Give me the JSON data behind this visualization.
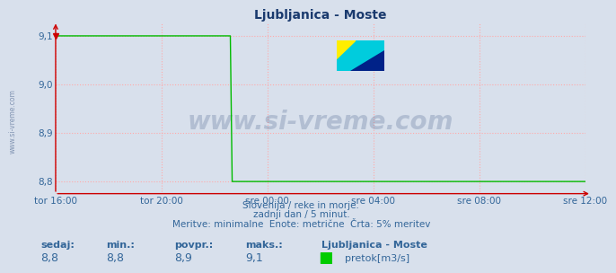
{
  "title": "Ljubljanica - Moste",
  "bg_color": "#d8e0ec",
  "plot_bg_color": "#d8e0ec",
  "line_color": "#00bb00",
  "grid_color": "#ffaaaa",
  "axis_color": "#cc0000",
  "text_color": "#336699",
  "title_color": "#1a3a6e",
  "ylim": [
    8.775,
    9.125
  ],
  "yticks": [
    8.8,
    8.9,
    9.0,
    9.1
  ],
  "ylabel_vals": [
    "8,8",
    "8,9",
    "9,0",
    "9,1"
  ],
  "xtick_labels": [
    "tor 16:00",
    "tor 20:00",
    "sre 00:00",
    "sre 04:00",
    "sre 08:00",
    "sre 12:00"
  ],
  "n_points": 289,
  "step_point": 96,
  "high_value": 9.1,
  "low_value": 8.8,
  "watermark": "www.si-vreme.com",
  "watermark_color": "#1a3a6e",
  "side_text": "www.si-vreme.com",
  "caption_line1": "Slovenija / reke in morje.",
  "caption_line2": "zadnji dan / 5 minut.",
  "caption_line3": "Meritve: minimalne  Enote: metrične  Črta: 5% meritev",
  "stat_label_color": "#336699",
  "stat_value_color": "#336699",
  "legend_title": "Ljubljanica - Moste",
  "legend_label": "pretok[m3/s]",
  "legend_color": "#00cc00",
  "sedaj": "8,8",
  "min_val": "8,8",
  "povpr_val": "8,9",
  "maks_val": "9,1"
}
